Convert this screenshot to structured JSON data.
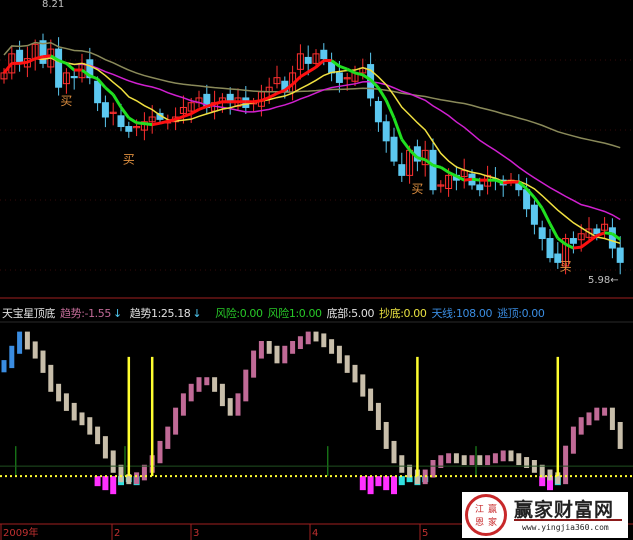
{
  "indicator_header": {
    "name": "天宝星顶底",
    "trend": "趋势:-1.55",
    "trend_arrow": "↓",
    "trend1": "趋势1:25.18",
    "trend1_arrow": "↓",
    "risk": "风险:0.00",
    "risk1": "风险1:0.00",
    "bottom": "底部:5.00",
    "buy_bottom": "抄底:0.00",
    "sky_line": "天线:108.00",
    "escape_top": "逃顶:0.00"
  },
  "colors": {
    "up": "#ff3030",
    "down": "#5cc8f0",
    "ma_up": "#ff1010",
    "ma_down": "#20e020",
    "ma_mid": "#f0e040",
    "ma_slow": "#d020d0",
    "ma_long": "#8a8a5a",
    "osc_up": "#c06a96",
    "osc_down": "#c8beaa",
    "signal": "#ffff30",
    "dotted": "#ffff30",
    "below_magenta": "#ff30ff",
    "below_cyan": "#30e0e0",
    "axis": "#a02020"
  },
  "watermark": {
    "seal": [
      "江",
      "赢",
      "恩",
      "家"
    ],
    "brand": "赢家财富网",
    "url": "www.yingjia360.com"
  },
  "chart_data": [
    {
      "type": "candlestick",
      "price_labels": {
        "high": "8.21",
        "low": "5.98",
        "low_arrow": "←"
      },
      "ylim": [
        5.9,
        8.25
      ],
      "closes": [
        7.68,
        7.84,
        7.76,
        7.8,
        7.92,
        7.76,
        7.88,
        7.56,
        7.68,
        7.64,
        7.76,
        7.64,
        7.43,
        7.31,
        7.35,
        7.23,
        7.19,
        7.23,
        7.27,
        7.31,
        7.29,
        7.27,
        7.31,
        7.39,
        7.43,
        7.47,
        7.39,
        7.43,
        7.47,
        7.43,
        7.47,
        7.39,
        7.43,
        7.52,
        7.56,
        7.64,
        7.52,
        7.68,
        7.84,
        7.76,
        7.84,
        7.8,
        7.68,
        7.6,
        7.64,
        7.68,
        7.72,
        7.47,
        7.27,
        7.11,
        6.94,
        6.82,
        7.03,
        6.94,
        7.03,
        6.7,
        6.74,
        6.82,
        6.78,
        6.86,
        6.74,
        6.7,
        6.82,
        6.78,
        6.74,
        6.78,
        6.7,
        6.54,
        6.41,
        6.29,
        6.13,
        6.09,
        6.29,
        6.25,
        6.33,
        6.37,
        6.33,
        6.41,
        6.21,
        6.09
      ],
      "buy_marks": {
        "label": "买",
        "indices": [
          8,
          16,
          53,
          72
        ]
      },
      "moving_averages": [
        "MA5",
        "MA10",
        "MA20",
        "MA60"
      ]
    },
    {
      "type": "bar",
      "name": "天宝星顶底",
      "ylim": [
        -12,
        112
      ],
      "baseline": 5,
      "values": [
        87.7,
        97.9,
        108,
        101,
        94.5,
        84.3,
        70.8,
        64,
        57.2,
        50.4,
        47,
        40.3,
        33.5,
        23.3,
        13.1,
        6.4,
        5,
        7.7,
        13.1,
        19.9,
        30.1,
        40.3,
        53.8,
        64,
        70.8,
        75.5,
        75.5,
        70.8,
        60.6,
        53.8,
        64,
        80.9,
        94.5,
        101.3,
        97.9,
        91.1,
        97.9,
        101.3,
        104.7,
        108,
        106.7,
        102.6,
        97.9,
        91.1,
        84.3,
        77.5,
        67.4,
        57.2,
        43.6,
        30.1,
        19.9,
        13.1,
        9.7,
        5,
        9.7,
        16.5,
        19.9,
        21.3,
        19.9,
        18.6,
        19.9,
        18.6,
        19.9,
        21.3,
        23.3,
        21.3,
        18.6,
        16.5,
        13.1,
        9.7,
        7.7,
        5,
        26.7,
        40.3,
        47,
        50.4,
        53.8,
        53.8,
        43.6,
        30.1
      ],
      "signal_indices": [
        16,
        19,
        53,
        71
      ],
      "minor_signal_indices": [
        1,
        15,
        41,
        60
      ],
      "bottom_magenta_indices": [
        12,
        13,
        14,
        46,
        47,
        48,
        49,
        50,
        69,
        70
      ],
      "bottom_cyan_indices": [
        15,
        16,
        17,
        51,
        52,
        53,
        54,
        71
      ]
    }
  ],
  "time_axis": [
    "2009年",
    "2",
    "3",
    "4",
    "5"
  ]
}
